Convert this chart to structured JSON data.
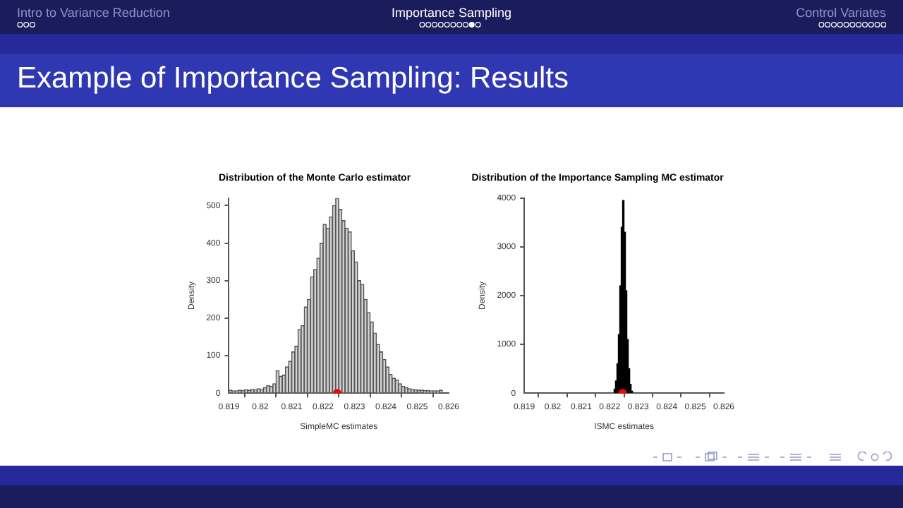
{
  "chart_data": [
    {
      "type": "other",
      "title": "Example of Importance Sampling: Results",
      "annotations": [
        "Intro to Variance Reduction",
        "Importance Sampling",
        "Control Variates"
      ]
    },
    {
      "type": "histogram",
      "title": "Distribution of the Monte Carlo estimator",
      "xlabel": "SimpleMC estimates",
      "ylabel": "Density",
      "xlim": [
        0.819,
        0.826
      ],
      "xticks": [
        0.819,
        0.82,
        0.821,
        0.822,
        0.823,
        0.824,
        0.825,
        0.826
      ],
      "ylim": [
        0,
        520
      ],
      "yticks": [
        0,
        100,
        200,
        300,
        400,
        500
      ],
      "grid": false,
      "legend": false,
      "series": [
        {
          "type": "histogram",
          "color": "#d3d3d3",
          "bins": [
            0.819,
            0.8191,
            0.8192,
            0.8193,
            0.8194,
            0.8195,
            0.8196,
            0.8197,
            0.8198,
            0.8199,
            0.82,
            0.8201,
            0.8202,
            0.8203,
            0.8204,
            0.8205,
            0.8206,
            0.8207,
            0.8208,
            0.8209,
            0.821,
            0.8211,
            0.8212,
            0.8213,
            0.8214,
            0.8215,
            0.8216,
            0.8217,
            0.8218,
            0.8219,
            0.822,
            0.8221,
            0.8222,
            0.8223,
            0.8224,
            0.8225,
            0.8226,
            0.8227,
            0.8228,
            0.8229,
            0.823,
            0.8231,
            0.8232,
            0.8233,
            0.8234,
            0.8235,
            0.8236,
            0.8237,
            0.8238,
            0.8239,
            0.824,
            0.8241,
            0.8242,
            0.8243,
            0.8244,
            0.8245,
            0.8246,
            0.8247,
            0.8248,
            0.8249,
            0.825,
            0.8251,
            0.8252,
            0.8253,
            0.8254,
            0.8255,
            0.8256,
            0.8257,
            0.8258
          ],
          "values": [
            8,
            6,
            6,
            8,
            7,
            9,
            8,
            10,
            9,
            12,
            10,
            15,
            20,
            18,
            25,
            60,
            45,
            48,
            70,
            85,
            110,
            125,
            170,
            180,
            230,
            250,
            310,
            330,
            360,
            400,
            450,
            440,
            470,
            500,
            520,
            490,
            460,
            440,
            430,
            380,
            350,
            300,
            290,
            250,
            215,
            190,
            160,
            130,
            110,
            90,
            70,
            50,
            40,
            35,
            25,
            18,
            15,
            12,
            10,
            9,
            8,
            8,
            7,
            7,
            6,
            6,
            6,
            8
          ]
        },
        {
          "type": "scatter",
          "color": "#ff0000",
          "marker": "circle",
          "x": [
            0.82245
          ],
          "values": [
            0
          ]
        }
      ]
    },
    {
      "type": "histogram",
      "title": "Distribution of the Importance Sampling MC estimator",
      "xlabel": "ISMC estimates",
      "ylabel": "Density",
      "xlim": [
        0.819,
        0.826
      ],
      "xticks": [
        0.819,
        0.82,
        0.821,
        0.822,
        0.823,
        0.824,
        0.825,
        0.826
      ],
      "ylim": [
        0,
        4000
      ],
      "yticks": [
        0,
        1000,
        2000,
        3000,
        4000
      ],
      "grid": false,
      "legend": false,
      "series": [
        {
          "type": "histogram",
          "color": "#000000",
          "bins": [
            0.8221,
            0.82215,
            0.8222,
            0.82225,
            0.8223,
            0.82235,
            0.8224,
            0.82245,
            0.8225,
            0.82255,
            0.8226,
            0.82265,
            0.8227,
            0.82275,
            0.8228
          ],
          "values": [
            null,
            80,
            250,
            600,
            1200,
            2200,
            3400,
            3950,
            3300,
            2100,
            1100,
            500,
            180,
            40
          ]
        },
        {
          "type": "scatter",
          "color": "#ff0000",
          "marker": "circle",
          "x": [
            0.82245
          ],
          "values": [
            0
          ]
        }
      ]
    }
  ]
}
